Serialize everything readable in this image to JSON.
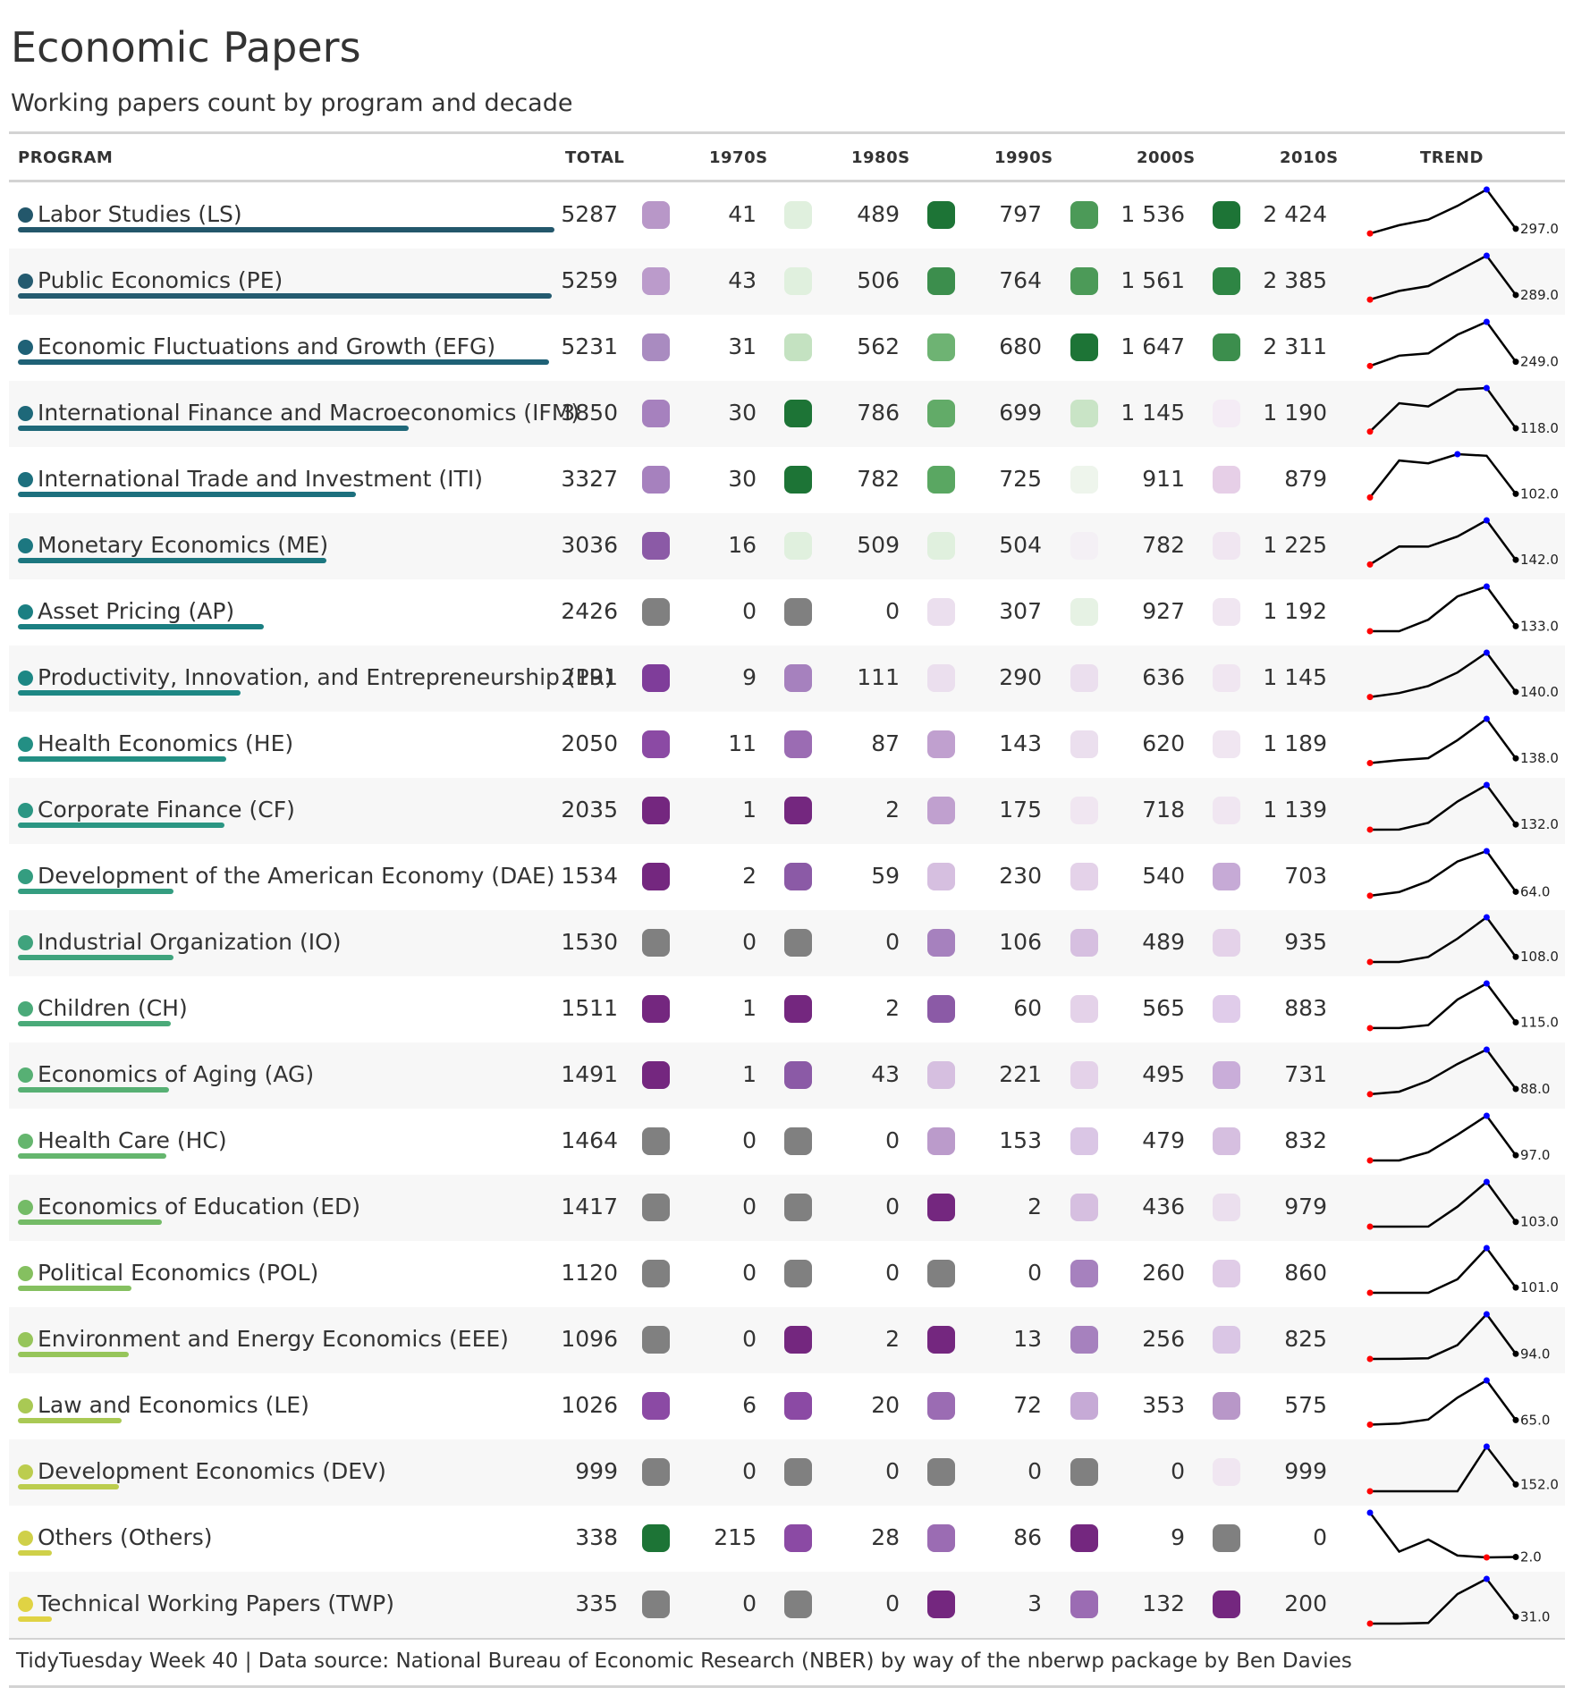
{
  "title": "Economic Papers",
  "subtitle": "Working papers count by program and decade",
  "source": "TidyTuesday Week 40 | Data source: National Bureau of Economic Research (NBER) by way of the nberwp package by Ben Davies",
  "headers": {
    "program": "PROGRAM",
    "total": "TOTAL",
    "d1970": "1970S",
    "d1980": "1980S",
    "d1990": "1990S",
    "d2000": "2000S",
    "d2010": "2010S",
    "trend": "TREND"
  },
  "chart_data": {
    "type": "table",
    "columns": [
      "PROGRAM",
      "TOTAL",
      "1970S",
      "1980S",
      "1990S",
      "2000S",
      "2010S",
      "TREND"
    ],
    "rows": [
      {
        "program": "Labor Studies (LS)",
        "total": "5287",
        "d1970": "41",
        "d1980": "489",
        "d1990": "797",
        "d2000": "1 536",
        "d2010": "2 424",
        "trend_label": "297.0",
        "t": [
          41,
          489,
          797,
          1536,
          2424,
          297
        ]
      },
      {
        "program": "Public Economics (PE)",
        "total": "5259",
        "d1970": "43",
        "d1980": "506",
        "d1990": "764",
        "d2000": "1 561",
        "d2010": "2 385",
        "trend_label": "289.0",
        "t": [
          43,
          506,
          764,
          1561,
          2385,
          289
        ]
      },
      {
        "program": "Economic Fluctuations and Growth (EFG)",
        "total": "5231",
        "d1970": "31",
        "d1980": "562",
        "d1990": "680",
        "d2000": "1 647",
        "d2010": "2 311",
        "trend_label": "249.0",
        "t": [
          31,
          562,
          680,
          1647,
          2311,
          249
        ]
      },
      {
        "program": "International Finance and Macroeconomics (IFM)",
        "total": "3850",
        "d1970": "30",
        "d1980": "786",
        "d1990": "699",
        "d2000": "1 145",
        "d2010": "1 190",
        "trend_label": "118.0",
        "t": [
          30,
          786,
          699,
          1145,
          1190,
          118
        ]
      },
      {
        "program": "International Trade and Investment (ITI)",
        "total": "3327",
        "d1970": "30",
        "d1980": "782",
        "d1990": "725",
        "d2000": "911",
        "d2010": "879",
        "trend_label": "102.0",
        "t": [
          30,
          782,
          725,
          911,
          879,
          102
        ]
      },
      {
        "program": "Monetary Economics (ME)",
        "total": "3036",
        "d1970": "16",
        "d1980": "509",
        "d1990": "504",
        "d2000": "782",
        "d2010": "1 225",
        "trend_label": "142.0",
        "t": [
          16,
          509,
          504,
          782,
          1225,
          142
        ]
      },
      {
        "program": "Asset Pricing (AP)",
        "total": "2426",
        "d1970": "0",
        "d1980": "0",
        "d1990": "307",
        "d2000": "927",
        "d2010": "1 192",
        "trend_label": "133.0",
        "t": [
          0,
          0,
          307,
          927,
          1192,
          133
        ]
      },
      {
        "program": "Productivity, Innovation, and Entrepreneurship (PR)",
        "total": "2191",
        "d1970": "9",
        "d1980": "111",
        "d1990": "290",
        "d2000": "636",
        "d2010": "1 145",
        "trend_label": "140.0",
        "t": [
          9,
          111,
          290,
          636,
          1145,
          140
        ]
      },
      {
        "program": "Health Economics (HE)",
        "total": "2050",
        "d1970": "11",
        "d1980": "87",
        "d1990": "143",
        "d2000": "620",
        "d2010": "1 189",
        "trend_label": "138.0",
        "t": [
          11,
          87,
          143,
          620,
          1189,
          138
        ]
      },
      {
        "program": "Corporate Finance (CF)",
        "total": "2035",
        "d1970": "1",
        "d1980": "2",
        "d1990": "175",
        "d2000": "718",
        "d2010": "1 139",
        "trend_label": "132.0",
        "t": [
          1,
          2,
          175,
          718,
          1139,
          132
        ]
      },
      {
        "program": "Development of the American Economy (DAE)",
        "total": "1534",
        "d1970": "2",
        "d1980": "59",
        "d1990": "230",
        "d2000": "540",
        "d2010": "703",
        "trend_label": "64.0",
        "t": [
          2,
          59,
          230,
          540,
          703,
          64
        ]
      },
      {
        "program": "Industrial Organization (IO)",
        "total": "1530",
        "d1970": "0",
        "d1980": "0",
        "d1990": "106",
        "d2000": "489",
        "d2010": "935",
        "trend_label": "108.0",
        "t": [
          0,
          0,
          106,
          489,
          935,
          108
        ]
      },
      {
        "program": "Children (CH)",
        "total": "1511",
        "d1970": "1",
        "d1980": "2",
        "d1990": "60",
        "d2000": "565",
        "d2010": "883",
        "trend_label": "115.0",
        "t": [
          1,
          2,
          60,
          565,
          883,
          115
        ]
      },
      {
        "program": "Economics of Aging (AG)",
        "total": "1491",
        "d1970": "1",
        "d1980": "43",
        "d1990": "221",
        "d2000": "495",
        "d2010": "731",
        "trend_label": "88.0",
        "t": [
          1,
          43,
          221,
          495,
          731,
          88
        ]
      },
      {
        "program": "Health Care (HC)",
        "total": "1464",
        "d1970": "0",
        "d1980": "0",
        "d1990": "153",
        "d2000": "479",
        "d2010": "832",
        "trend_label": "97.0",
        "t": [
          0,
          0,
          153,
          479,
          832,
          97
        ]
      },
      {
        "program": "Economics of Education (ED)",
        "total": "1417",
        "d1970": "0",
        "d1980": "0",
        "d1990": "2",
        "d2000": "436",
        "d2010": "979",
        "trend_label": "103.0",
        "t": [
          0,
          0,
          2,
          436,
          979,
          103
        ]
      },
      {
        "program": "Political Economics (POL)",
        "total": "1120",
        "d1970": "0",
        "d1980": "0",
        "d1990": "0",
        "d2000": "260",
        "d2010": "860",
        "trend_label": "101.0",
        "t": [
          0,
          0,
          0,
          260,
          860,
          101
        ]
      },
      {
        "program": "Environment and Energy Economics (EEE)",
        "total": "1096",
        "d1970": "0",
        "d1980": "2",
        "d1990": "13",
        "d2000": "256",
        "d2010": "825",
        "trend_label": "94.0",
        "t": [
          0,
          2,
          13,
          256,
          825,
          94
        ]
      },
      {
        "program": "Law and Economics (LE)",
        "total": "1026",
        "d1970": "6",
        "d1980": "20",
        "d1990": "72",
        "d2000": "353",
        "d2010": "575",
        "trend_label": "65.0",
        "t": [
          6,
          20,
          72,
          353,
          575,
          65
        ]
      },
      {
        "program": "Development Economics (DEV)",
        "total": "999",
        "d1970": "0",
        "d1980": "0",
        "d1990": "0",
        "d2000": "0",
        "d2010": "999",
        "trend_label": "152.0",
        "t": [
          0,
          0,
          0,
          0,
          999,
          152
        ]
      },
      {
        "program": "Others (Others)",
        "total": "338",
        "d1970": "215",
        "d1980": "28",
        "d1990": "86",
        "d2000": "9",
        "d2010": "0",
        "trend_label": "2.0",
        "t": [
          215,
          28,
          86,
          9,
          0,
          2
        ]
      },
      {
        "program": "Technical Working Papers (TWP)",
        "total": "335",
        "d1970": "0",
        "d1980": "0",
        "d1990": "3",
        "d2000": "132",
        "d2010": "200",
        "trend_label": "31.0",
        "t": [
          0,
          0,
          3,
          132,
          200,
          31
        ]
      }
    ]
  },
  "colors": {
    "dots": [
      "#23576b",
      "#245b70",
      "#1f6176",
      "#1e6879",
      "#1d707e",
      "#1c7780",
      "#1b7f82",
      "#1d8784",
      "#238f84",
      "#2b9683",
      "#349d80",
      "#3fa37d",
      "#4aaa79",
      "#57b074",
      "#65b66e",
      "#74bb67",
      "#85c060",
      "#96c55a",
      "#a9c954",
      "#bccd4e",
      "#cfd049",
      "#e0d344"
    ],
    "squares": [
      [
        "#b897c8",
        "#e0f0de",
        "#1d7436",
        "#4c9a58",
        "#1d7436"
      ],
      [
        "#bb9bcb",
        "#e0f0de",
        "#3c8e4d",
        "#4c9a58",
        "#2e8544"
      ],
      [
        "#a98bc0",
        "#c4e2c1",
        "#6eb373",
        "#1d7436",
        "#3c8e4d"
      ],
      [
        "#a681be",
        "#1d7436",
        "#62ab68",
        "#c9e4c6",
        "#f4ecf5"
      ],
      [
        "#a681be",
        "#1d7436",
        "#5aa762",
        "#eef5ec",
        "#e6cfe7"
      ],
      [
        "#8b5aa6",
        "#e0f0de",
        "#e0f0de",
        "#f4f0f5",
        "#f0e6f1"
      ],
      [
        "#808080",
        "#808080",
        "#ebdfee",
        "#e6f2e4",
        "#f0e6f1"
      ],
      [
        "#7f3d9a",
        "#a681be",
        "#ebdfee",
        "#ebdfee",
        "#f0e6f1"
      ],
      [
        "#8b4aa4",
        "#9b6cb3",
        "#c0a0cf",
        "#ebdfee",
        "#f0e6f1"
      ],
      [
        "#74277f",
        "#74277f",
        "#c0a0cf",
        "#f0e6f1",
        "#f0e6f1"
      ],
      [
        "#74277f",
        "#8b5aa6",
        "#d6bfe0",
        "#e4d2e9",
        "#c6aad6"
      ],
      [
        "#808080",
        "#808080",
        "#a681be",
        "#d6bfe0",
        "#e4d2e9"
      ],
      [
        "#74277f",
        "#74277f",
        "#8b5aa6",
        "#e4d2e9",
        "#e0ccea"
      ],
      [
        "#74277f",
        "#8b5aa6",
        "#d6bfe0",
        "#e4d2e9",
        "#c9add9"
      ],
      [
        "#808080",
        "#808080",
        "#bb9bcb",
        "#dac6e5",
        "#d6bfe0"
      ],
      [
        "#808080",
        "#808080",
        "#74277f",
        "#d6bfe0",
        "#ebdfee"
      ],
      [
        "#808080",
        "#808080",
        "#808080",
        "#a681be",
        "#e0cce7"
      ],
      [
        "#808080",
        "#74277f",
        "#74277f",
        "#a681be",
        "#dac6e5"
      ],
      [
        "#8b4aa4",
        "#8b4aa4",
        "#9b6cb3",
        "#c6aad6",
        "#b897c8"
      ],
      [
        "#808080",
        "#808080",
        "#808080",
        "#808080",
        "#f0e6f1"
      ],
      [
        "#1d7436",
        "#8b4aa4",
        "#9b6cb3",
        "#74277f",
        "#808080"
      ],
      [
        "#808080",
        "#808080",
        "#74277f",
        "#9b6cb3",
        "#74277f"
      ]
    ]
  }
}
